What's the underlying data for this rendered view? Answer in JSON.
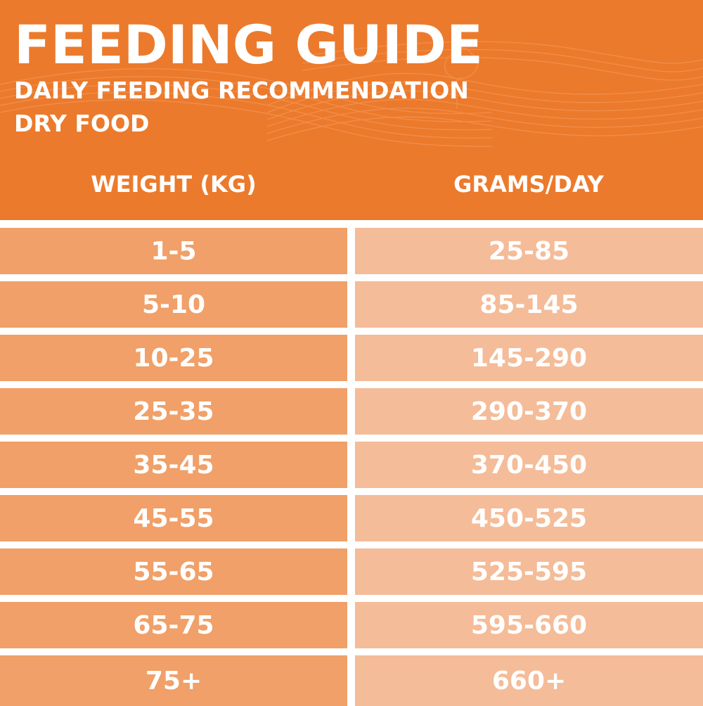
{
  "header": {
    "title": "FEEDING GUIDE",
    "subtitle": "DAILY FEEDING RECOMMENDATION",
    "subtitle2": "DRY FOOD"
  },
  "table": {
    "columns": [
      "WEIGHT (KG)",
      "GRAMS/DAY"
    ],
    "rows": [
      [
        "1-5",
        "25-85"
      ],
      [
        "5-10",
        "85-145"
      ],
      [
        "10-25",
        "145-290"
      ],
      [
        "25-35",
        "290-370"
      ],
      [
        "35-45",
        "370-450"
      ],
      [
        "45-55",
        "450-525"
      ],
      [
        "55-65",
        "525-595"
      ],
      [
        "65-75",
        "595-660"
      ],
      [
        "75+",
        "660+"
      ]
    ]
  },
  "colors": {
    "accent": "#ec7a2c",
    "weight_cell": "#f0a068",
    "grams_cell": "#f4bc98",
    "text": "#ffffff"
  }
}
